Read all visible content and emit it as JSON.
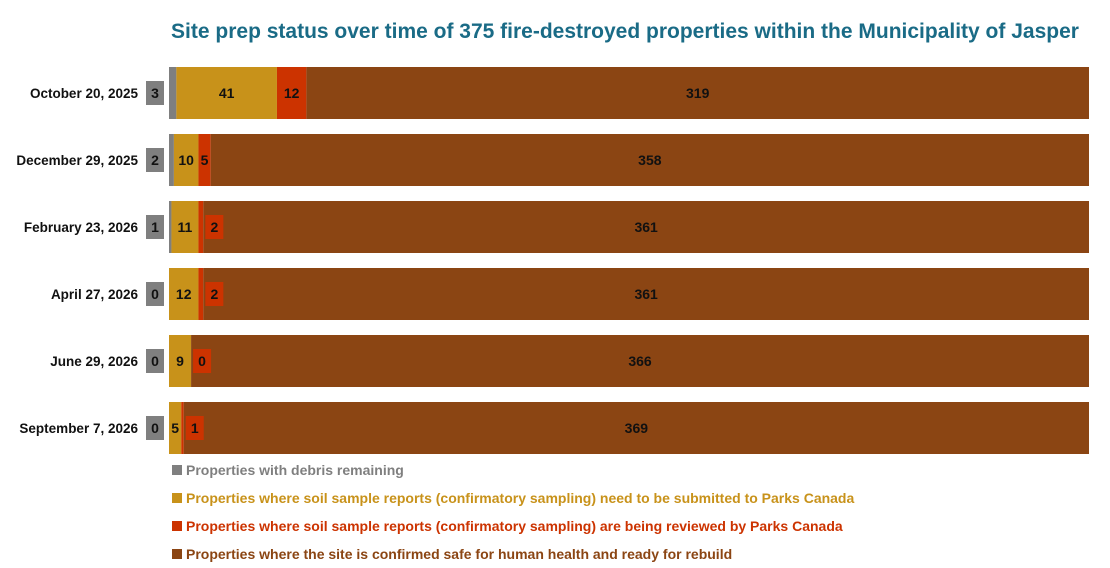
{
  "chart_data": {
    "type": "bar",
    "orientation": "horizontal",
    "stacked": true,
    "title": "Site prep status over time of 375 fire-destroyed properties within the Municipality of Jasper",
    "categories": [
      "October 20, 2025",
      "December 29, 2025",
      "February 23, 2026",
      "April 27, 2026",
      "June 29, 2026",
      "September 7, 2026"
    ],
    "series": [
      {
        "name": "Properties with debris remaining",
        "color": "#7f7f7f",
        "values": [
          3,
          2,
          1,
          0,
          0,
          0
        ]
      },
      {
        "name": "Properties where soil sample reports (confirmatory sampling) need to be submitted to Parks Canada",
        "color": "#c8921a",
        "values": [
          41,
          10,
          11,
          12,
          9,
          5
        ]
      },
      {
        "name": "Properties where soil sample reports (confirmatory sampling) are being reviewed by Parks Canada",
        "color": "#cc3300",
        "values": [
          12,
          5,
          2,
          2,
          0,
          1
        ]
      },
      {
        "name": "Properties where the site is confirmed safe for human health and ready for rebuild",
        "color": "#8b4513",
        "values": [
          319,
          358,
          361,
          361,
          366,
          369
        ]
      }
    ],
    "xlim": [
      0,
      375
    ],
    "grid": false,
    "legend_position": "bottom-left"
  }
}
